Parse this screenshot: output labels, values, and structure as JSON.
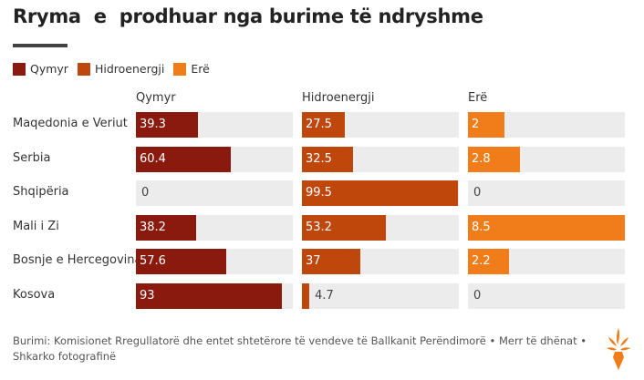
{
  "title": "Rryma  e  prodhuar nga burime të ndryshme",
  "legend": [
    {
      "label": "Qymyr",
      "color": "#8b1a0e"
    },
    {
      "label": "Hidroenergji",
      "color": "#c0470b"
    },
    {
      "label": "Erë",
      "color": "#f07d1a"
    }
  ],
  "footer": "Burimi: Komisionet Rregullatorë dhe entet shtetërore të vendeve të Ballkanit Perëndimorë • Merr të dhënat • Shkarko fotografinë",
  "chart_data": {
    "type": "bar",
    "categories": [
      "Maqedonia e Veriut",
      "Serbia",
      "Shqipëria",
      "Mali i Zi",
      "Bosnje e Hercegovina",
      "Kosova"
    ],
    "series": [
      {
        "name": "Qymyr",
        "values": [
          39.3,
          60.4,
          0,
          38.2,
          57.6,
          93
        ],
        "labels": [
          "39.3",
          "60.4",
          "0",
          "38.2",
          "57.6",
          "93"
        ],
        "color": "#8b1a0e",
        "max": 100
      },
      {
        "name": "Hidroenergji",
        "values": [
          27.5,
          32.5,
          99.5,
          53.2,
          37,
          4.7
        ],
        "labels": [
          "27.5",
          "32.5",
          "99.5",
          "53.2",
          "37",
          "4.7"
        ],
        "color": "#c0470b",
        "max": 100
      },
      {
        "name": "Erë",
        "values": [
          2,
          2.8,
          0,
          8.5,
          2.2,
          0
        ],
        "labels": [
          "2",
          "2.8",
          "0",
          "8.5",
          "2.2",
          "0"
        ],
        "color": "#f07d1a",
        "max": 8.5
      }
    ]
  }
}
